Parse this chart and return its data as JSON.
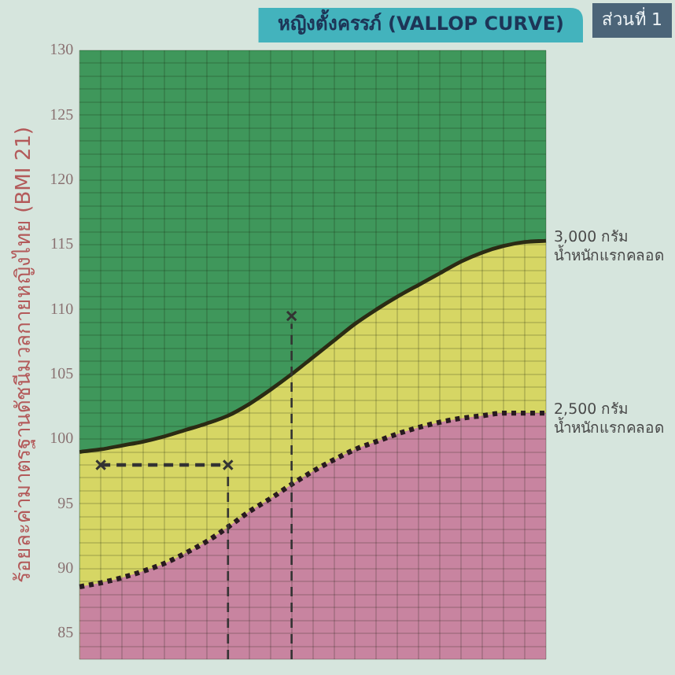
{
  "chart_data": {
    "type": "line",
    "title": "หญิงตั้งครรภ์ (VALLOP CURVE)",
    "subtitle": "ส่วนที่ 1",
    "ylabel": "ร้อยละค่ามาตรฐานดัชนีมวลกายหญิงไทย (BMI 21)",
    "categories": [
      null,
      null,
      null,
      null,
      null,
      null,
      null,
      null,
      null,
      null,
      null,
      null,
      null,
      null,
      null,
      null,
      null,
      null,
      null,
      null,
      null,
      null,
      null
    ],
    "ylim": [
      83,
      130
    ],
    "yticks": [
      {
        "value": 83,
        "label": null
      },
      {
        "value": 84,
        "label": null
      },
      85,
      {
        "value": 86,
        "label": null
      },
      {
        "value": 87,
        "label": null
      },
      {
        "value": 88,
        "label": null
      },
      {
        "value": 89,
        "label": null
      },
      90,
      {
        "value": 91,
        "label": null
      },
      {
        "value": 92,
        "label": null
      },
      {
        "value": 93,
        "label": null
      },
      {
        "value": 94,
        "label": null
      },
      95,
      {
        "value": 96,
        "label": null
      },
      {
        "value": 97,
        "label": null
      },
      {
        "value": 98,
        "label": null
      },
      {
        "value": 99,
        "label": null
      },
      100,
      {
        "value": 101,
        "label": null
      },
      {
        "value": 102,
        "label": null
      },
      {
        "value": 103,
        "label": null
      },
      {
        "value": 104,
        "label": null
      },
      105,
      {
        "value": 106,
        "label": null
      },
      {
        "value": 107,
        "label": null
      },
      {
        "value": 108,
        "label": null
      },
      {
        "value": 109,
        "label": null
      },
      110,
      {
        "value": 111,
        "label": null
      },
      {
        "value": 112,
        "label": null
      },
      {
        "value": 113,
        "label": null
      },
      {
        "value": 114,
        "label": null
      },
      115,
      {
        "value": 116,
        "label": null
      },
      {
        "value": 117,
        "label": null
      },
      {
        "value": 118,
        "label": null
      },
      {
        "value": 119,
        "label": null
      },
      120,
      {
        "value": 121,
        "label": null
      },
      {
        "value": 122,
        "label": null
      },
      {
        "value": 123,
        "label": null
      },
      {
        "value": 124,
        "label": null
      },
      125,
      {
        "value": 126,
        "label": null
      },
      {
        "value": 127,
        "label": null
      },
      {
        "value": 128,
        "label": null
      },
      {
        "value": 129,
        "label": null
      },
      130
    ],
    "grid": true,
    "tick_labels": "y",
    "series": [
      {
        "type": "lollipop",
        "color": "#333333",
        "line_style": "dashed",
        "marker": "cross",
        "values": [
          null,
          null,
          null,
          null,
          null,
          null,
          null,
          98,
          null,
          null,
          109.5,
          null,
          null,
          null,
          null,
          null,
          null,
          null,
          null,
          null,
          null,
          null,
          null
        ]
      },
      {
        "color": "#333333",
        "line_style": "dashed",
        "marker": "none",
        "values": [
          null,
          98,
          null,
          null,
          null,
          null,
          null,
          98,
          null,
          null,
          null,
          null,
          null,
          null,
          null,
          null,
          null,
          null,
          null,
          null,
          null,
          null,
          null
        ]
      },
      {
        "color": "#333333",
        "marker": "cross",
        "values": [
          null,
          98,
          null,
          null,
          null,
          null,
          null,
          null,
          null,
          null,
          null,
          null,
          null,
          null,
          null,
          null,
          null,
          null,
          null,
          null,
          null,
          null,
          null
        ]
      },
      {
        "type": "area",
        "color": "#c884a0",
        "line_style": "dotted",
        "values": [
          88.6,
          88.9,
          89.3,
          89.8,
          90.4,
          91.2,
          92.1,
          93.2,
          94.4,
          95.4,
          96.5,
          97.5,
          98.4,
          99.2,
          99.8,
          100.4,
          100.9,
          101.3,
          101.6,
          101.8,
          102.0,
          102.0,
          102.0
        ]
      },
      {
        "type": "area",
        "color": "#d6d664",
        "line_style": "solid",
        "values": [
          99.0,
          99.2,
          99.5,
          99.8,
          100.2,
          100.7,
          101.2,
          101.8,
          102.7,
          103.8,
          105.0,
          106.3,
          107.6,
          108.9,
          110.0,
          111.0,
          111.9,
          112.8,
          113.7,
          114.4,
          114.9,
          115.2,
          115.3
        ]
      }
    ],
    "annotations": [
      "3,000 กรัม\nน้ำหนักแรกคลอด",
      "2,500 กรัม\nน้ำหนักแรกคลอด"
    ]
  }
}
